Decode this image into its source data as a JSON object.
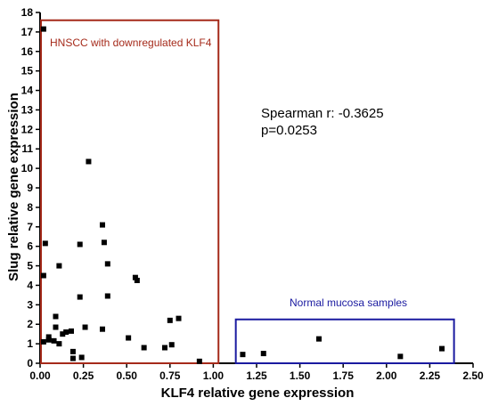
{
  "chart_data": {
    "type": "scatter",
    "xlabel": "KLF4 relative gene expression",
    "ylabel": "Slug relative gene expression",
    "xlim": [
      0,
      2.5
    ],
    "ylim": [
      0,
      18
    ],
    "x_ticks": [
      "0.00",
      "0.25",
      "0.50",
      "0.75",
      "1.00",
      "1.25",
      "1.50",
      "1.75",
      "2.00",
      "2.25",
      "2.50"
    ],
    "y_ticks": [
      "0",
      "1",
      "2",
      "3",
      "4",
      "5",
      "6",
      "7",
      "8",
      "9",
      "10",
      "11",
      "12",
      "13",
      "14",
      "15",
      "16",
      "17",
      "18"
    ],
    "grid": false,
    "annotations": {
      "stat_line1": "Spearman r:  -0.3625",
      "stat_line2": "p=0.0253",
      "hnscc_label": "HNSCC with downregulated KLF4",
      "normal_label": "Normal mucosa samples"
    },
    "colors": {
      "hnscc_box": "#a52a1a",
      "normal_box": "#1a1aa0",
      "points": "#000000"
    },
    "regions": {
      "hnscc": {
        "x": [
          0.0,
          1.03
        ],
        "y": [
          0.0,
          17.6
        ]
      },
      "normal": {
        "x": [
          1.13,
          2.39
        ],
        "y": [
          0.0,
          2.25
        ]
      }
    },
    "series": [
      {
        "points": [
          [
            0.02,
            17.15
          ],
          [
            0.02,
            4.5
          ],
          [
            0.02,
            1.1
          ],
          [
            0.03,
            6.15
          ],
          [
            0.05,
            1.2
          ],
          [
            0.05,
            1.35
          ],
          [
            0.08,
            1.15
          ],
          [
            0.09,
            2.4
          ],
          [
            0.09,
            1.85
          ],
          [
            0.11,
            5.0
          ],
          [
            0.11,
            1.0
          ],
          [
            0.13,
            1.5
          ],
          [
            0.15,
            1.6
          ],
          [
            0.18,
            1.65
          ],
          [
            0.19,
            0.6
          ],
          [
            0.19,
            0.25
          ],
          [
            0.23,
            6.1
          ],
          [
            0.23,
            3.4
          ],
          [
            0.24,
            0.3
          ],
          [
            0.26,
            1.85
          ],
          [
            0.28,
            10.35
          ],
          [
            0.36,
            7.1
          ],
          [
            0.36,
            1.75
          ],
          [
            0.37,
            6.2
          ],
          [
            0.39,
            5.1
          ],
          [
            0.39,
            3.45
          ],
          [
            0.51,
            1.3
          ],
          [
            0.55,
            4.4
          ],
          [
            0.56,
            4.25
          ],
          [
            0.6,
            0.8
          ],
          [
            0.72,
            0.8
          ],
          [
            0.75,
            2.2
          ],
          [
            0.76,
            0.95
          ],
          [
            0.8,
            2.3
          ],
          [
            0.92,
            0.1
          ],
          [
            1.17,
            0.45
          ],
          [
            1.29,
            0.5
          ],
          [
            1.61,
            1.25
          ],
          [
            2.08,
            0.35
          ],
          [
            2.32,
            0.75
          ]
        ]
      }
    ]
  }
}
